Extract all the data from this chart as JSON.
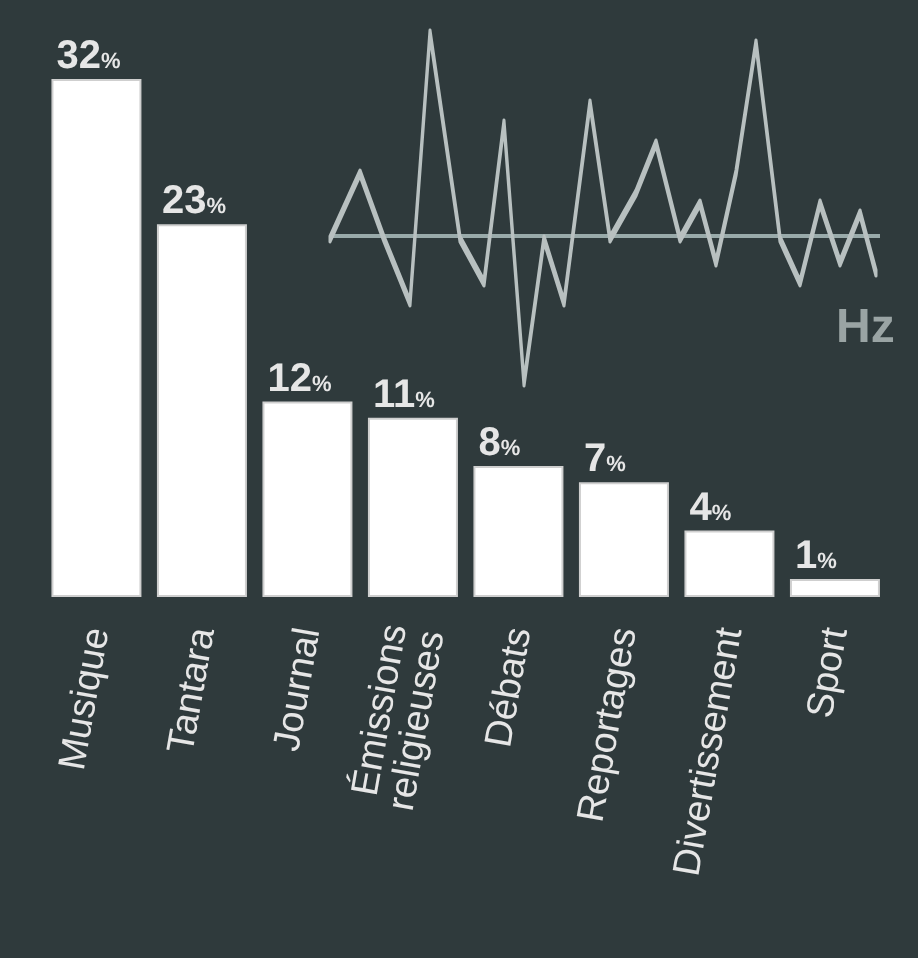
{
  "chart_data": {
    "type": "bar",
    "categories": [
      "Musique",
      "Tantara",
      "Journal",
      "Émissions religieuses",
      "Débats",
      "Reportages",
      "Divertissement",
      "Sport"
    ],
    "values": [
      32,
      23,
      12,
      11,
      8,
      7,
      4,
      1
    ],
    "value_labels": [
      "32%",
      "23%",
      "12%",
      "11%",
      "8%",
      "7%",
      "4%",
      "1%"
    ],
    "color": "#ffffff",
    "annotations": [
      "Hz"
    ]
  }
}
